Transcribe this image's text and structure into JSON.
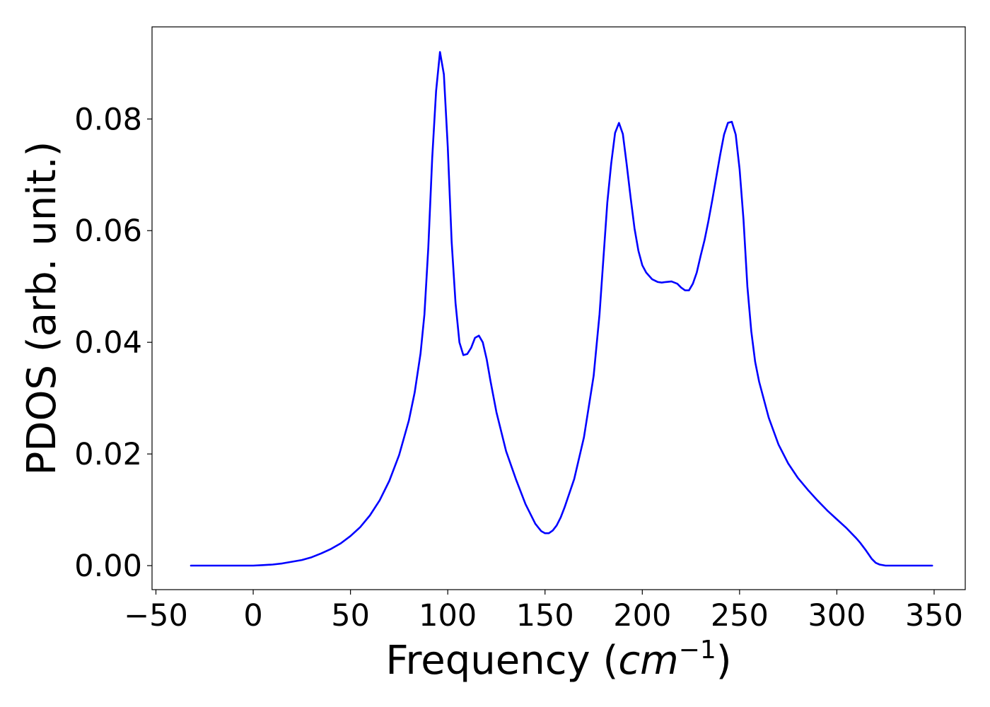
{
  "chart_data": {
    "type": "line",
    "title": "",
    "xlabel": "Frequency (",
    "xlabel_math": "cm",
    "xlabel_sup": "−1",
    "xlabel_close": ")",
    "ylabel": "PDOS (arb. unit.)",
    "xlim": [
      -52,
      366
    ],
    "ylim": [
      -0.0043,
      0.0965
    ],
    "xticks": [
      -50,
      0,
      50,
      100,
      150,
      200,
      250,
      300,
      350
    ],
    "xtick_labels": [
      "−50",
      "0",
      "50",
      "100",
      "150",
      "200",
      "250",
      "300",
      "350"
    ],
    "yticks": [
      0.0,
      0.02,
      0.04,
      0.06,
      0.08
    ],
    "ytick_labels": [
      "0.00",
      "0.02",
      "0.04",
      "0.06",
      "0.08"
    ],
    "grid": false,
    "legend": "none",
    "series": [
      {
        "color": "#0000ff",
        "x": [
          -32,
          0,
          5,
          10,
          15,
          20,
          25,
          30,
          35,
          40,
          45,
          50,
          55,
          60,
          65,
          70,
          75,
          80,
          83,
          86,
          88,
          90,
          92,
          94,
          96,
          98,
          100,
          102,
          104,
          106,
          108,
          110,
          112,
          114,
          116,
          118,
          120,
          122,
          125,
          130,
          135,
          140,
          145,
          148,
          150,
          152,
          154,
          156,
          158,
          160,
          165,
          170,
          175,
          178,
          180,
          182,
          184,
          186,
          188,
          190,
          192,
          194,
          196,
          198,
          200,
          202,
          205,
          208,
          210,
          212,
          215,
          218,
          220,
          222,
          224,
          226,
          228,
          230,
          232,
          234,
          236,
          238,
          240,
          242,
          244,
          246,
          248,
          250,
          252,
          254,
          256,
          258,
          260,
          265,
          270,
          275,
          280,
          285,
          290,
          295,
          300,
          305,
          310,
          312,
          315,
          318,
          320,
          322,
          325,
          330,
          349
        ],
        "y": [
          0.0,
          0.0,
          0.0001,
          0.0002,
          0.0004,
          0.0007,
          0.001,
          0.0015,
          0.0022,
          0.003,
          0.004,
          0.0053,
          0.0069,
          0.009,
          0.0117,
          0.0152,
          0.0198,
          0.026,
          0.031,
          0.038,
          0.045,
          0.057,
          0.073,
          0.085,
          0.092,
          0.088,
          0.075,
          0.058,
          0.047,
          0.04,
          0.0377,
          0.0379,
          0.039,
          0.0408,
          0.0412,
          0.04,
          0.037,
          0.033,
          0.0275,
          0.0205,
          0.0155,
          0.011,
          0.0075,
          0.0062,
          0.0058,
          0.0058,
          0.0063,
          0.0072,
          0.0086,
          0.0104,
          0.0155,
          0.023,
          0.034,
          0.045,
          0.055,
          0.065,
          0.072,
          0.0775,
          0.0793,
          0.0773,
          0.0718,
          0.0659,
          0.0604,
          0.0564,
          0.0538,
          0.0525,
          0.0513,
          0.0508,
          0.0507,
          0.0508,
          0.0509,
          0.0505,
          0.0498,
          0.0493,
          0.0493,
          0.0505,
          0.0525,
          0.0555,
          0.0583,
          0.0617,
          0.0655,
          0.0695,
          0.0735,
          0.0772,
          0.0793,
          0.0795,
          0.0772,
          0.071,
          0.062,
          0.05,
          0.042,
          0.0365,
          0.033,
          0.0265,
          0.0217,
          0.0183,
          0.0157,
          0.0136,
          0.0117,
          0.0099,
          0.0083,
          0.0067,
          0.0049,
          0.0041,
          0.0027,
          0.0012,
          0.0005,
          0.0002,
          0.0,
          0.0,
          0.0
        ]
      }
    ]
  }
}
